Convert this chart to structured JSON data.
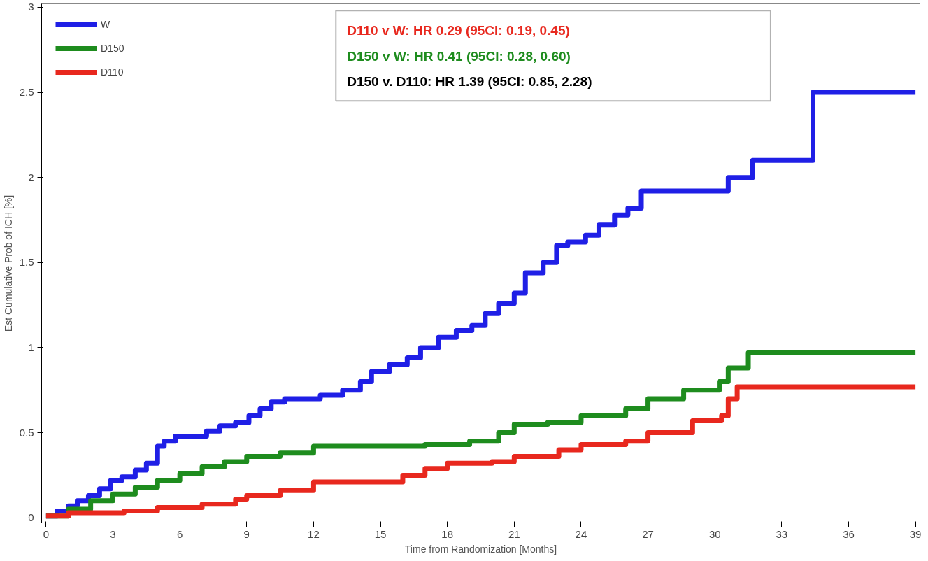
{
  "chart_data": {
    "type": "step",
    "xlabel": "Time from Randomization [Months]",
    "ylabel": "Est Cumulative Prob of ICH [%]",
    "xlim": [
      -0.2,
      39.2
    ],
    "ylim": [
      -0.03,
      3.02
    ],
    "xticks": [
      0,
      3,
      6,
      9,
      12,
      15,
      18,
      21,
      24,
      27,
      30,
      33,
      36,
      39
    ],
    "yticks": [
      0,
      0.5,
      1,
      1.5,
      2,
      2.5,
      3
    ],
    "grid": false,
    "legend": "top left",
    "line_style": "solid",
    "marker": "none",
    "annotations": [
      "D110 v W: HR 0.29 (95CI: 0.19, 0.45)",
      "D150 v W: HR 0.41 (95CI: 0.28, 0.60)",
      "D150 v. D110: HR 1.39 (95CI: 0.85, 2.28)"
    ],
    "series": [
      {
        "name": "W",
        "color": "#1f1fe6",
        "x": [
          0,
          0.5,
          1,
          1.4,
          1.9,
          2.4,
          2.9,
          3.4,
          4,
          4.5,
          5,
          5.3,
          5.8,
          6.9,
          7.2,
          7.8,
          8.5,
          9.1,
          9.6,
          10.1,
          10.7,
          12.3,
          13.3,
          14.1,
          14.6,
          15.4,
          16.2,
          16.8,
          17.6,
          18.4,
          19.1,
          19.7,
          20.3,
          21,
          21.5,
          22.3,
          22.9,
          23.4,
          24.2,
          24.8,
          25.5,
          26.1,
          26.7,
          28.6,
          30.6,
          31.7,
          34.4,
          39
        ],
        "values": [
          0.01,
          0.04,
          0.07,
          0.1,
          0.13,
          0.17,
          0.22,
          0.24,
          0.28,
          0.32,
          0.42,
          0.45,
          0.48,
          0.48,
          0.51,
          0.54,
          0.56,
          0.6,
          0.64,
          0.68,
          0.7,
          0.72,
          0.75,
          0.8,
          0.86,
          0.9,
          0.94,
          1.0,
          1.06,
          1.1,
          1.13,
          1.2,
          1.26,
          1.32,
          1.44,
          1.5,
          1.6,
          1.62,
          1.66,
          1.72,
          1.78,
          1.82,
          1.92,
          1.92,
          2.0,
          2.1,
          2.5,
          2.5
        ]
      },
      {
        "name": "D150",
        "color": "#1e8c1e",
        "x": [
          0,
          1,
          2,
          3,
          4,
          5,
          6,
          7,
          8,
          9,
          10.5,
          12,
          17,
          19,
          20.3,
          21,
          22.5,
          24,
          26,
          27,
          28.6,
          30.2,
          30.6,
          31.5,
          39
        ],
        "values": [
          0.01,
          0.05,
          0.1,
          0.14,
          0.18,
          0.22,
          0.26,
          0.3,
          0.33,
          0.36,
          0.38,
          0.42,
          0.43,
          0.45,
          0.5,
          0.55,
          0.56,
          0.6,
          0.64,
          0.7,
          0.75,
          0.8,
          0.88,
          0.97,
          0.97
        ]
      },
      {
        "name": "D110",
        "color": "#e8281e",
        "x": [
          0,
          1,
          3.5,
          5,
          7,
          8.5,
          9,
          10.5,
          12,
          15,
          16,
          17,
          18,
          20,
          21,
          23,
          24,
          26,
          27,
          29,
          30.3,
          30.6,
          31,
          39
        ],
        "values": [
          0.01,
          0.03,
          0.04,
          0.06,
          0.08,
          0.11,
          0.13,
          0.16,
          0.21,
          0.21,
          0.25,
          0.29,
          0.32,
          0.33,
          0.36,
          0.4,
          0.43,
          0.45,
          0.5,
          0.57,
          0.6,
          0.7,
          0.77,
          0.77
        ]
      }
    ]
  }
}
